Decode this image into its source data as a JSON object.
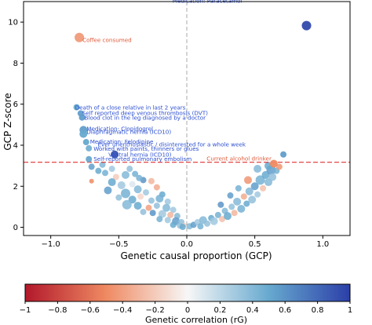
{
  "chart_data": {
    "type": "scatter",
    "title": "",
    "xlabel": "Genetic causal proportion (GCP)",
    "ylabel": "GCP Z-score",
    "xlim": [
      -1.2,
      1.2
    ],
    "ylim": [
      -0.4,
      11
    ],
    "x_ticks": [
      -1.0,
      -0.5,
      0.0,
      0.5,
      1.0
    ],
    "x_tick_labels": [
      "−1.0",
      "−0.5",
      "0.0",
      "0.5",
      "1.0"
    ],
    "y_ticks": [
      0,
      2,
      4,
      6,
      8,
      10
    ],
    "y_tick_labels": [
      "0",
      "2",
      "4",
      "6",
      "8",
      "10"
    ],
    "threshold_y": 3.17,
    "vertical_reference_x": 0,
    "grid": false,
    "colorbar": {
      "label": "Genetic correlation (rG)",
      "min": -1,
      "max": 1,
      "ticks": [
        -1,
        -0.8,
        -0.6,
        -0.4,
        -0.2,
        0,
        0.2,
        0.4,
        0.6,
        0.8,
        1
      ],
      "tick_labels": [
        "−1",
        "−0.8",
        "−0.6",
        "−0.4",
        "−0.2",
        "0",
        "0.2",
        "0.4",
        "0.6",
        "0.8",
        "1"
      ],
      "colors": [
        "#b2182b",
        "#ef8a62",
        "#f7f7f7",
        "#67a9cf",
        "#2c3fa8"
      ]
    },
    "annotations": [
      {
        "text": "Medication: Paracetamol",
        "x": 0.88,
        "y": 9.83,
        "rg": 0.95,
        "r": 6
      },
      {
        "text": "Coffee consumed",
        "x": -0.79,
        "y": 9.25,
        "rg": -0.42,
        "r": 6
      },
      {
        "text": "Death of a close relative in last 2 years",
        "x": -0.81,
        "y": 5.85,
        "rg": 0.5,
        "r": 4
      },
      {
        "text": "Self reported deep venous thrombosis (DVT)",
        "x": -0.78,
        "y": 5.55,
        "rg": 0.55,
        "r": 4
      },
      {
        "text": "Blood clot in the leg diagnosed by a doctor",
        "x": -0.77,
        "y": 5.35,
        "rg": 0.55,
        "r": 4
      },
      {
        "text": "Medication: Clopidogrel",
        "x": -0.76,
        "y": 4.75,
        "rg": 0.55,
        "r": 5
      },
      {
        "text": "Diaphragmatic hernia (ICD10)",
        "x": -0.76,
        "y": 4.55,
        "rg": 0.5,
        "r": 5
      },
      {
        "text": "Medication: Felodipine",
        "x": -0.74,
        "y": 4.15,
        "rg": 0.5,
        "r": 4
      },
      {
        "text": "Worked with paints, thinners or glues",
        "x": -0.72,
        "y": 3.85,
        "rg": 0.45,
        "r": 4
      },
      {
        "text": "Ventral hernia (ICD10)",
        "x": -0.53,
        "y": 3.55,
        "rg": 0.9,
        "r": 5
      },
      {
        "text": "Self-reported pulmonary embolism",
        "x": -0.72,
        "y": 3.32,
        "rg": 0.5,
        "r": 4
      },
      {
        "text": "Ever unenthusiastic / disinterested for a whole week",
        "x": 0.71,
        "y": 3.55,
        "rg": 0.55,
        "r": 4
      },
      {
        "text": "Current alcohol drinker",
        "x": 0.64,
        "y": 3.1,
        "rg": -0.5,
        "r": 5
      }
    ],
    "points": [
      {
        "x": -0.65,
        "y": 2.75,
        "rg": 0.5,
        "r": 4
      },
      {
        "x": -0.55,
        "y": 2.85,
        "rg": 0.3,
        "r": 4
      },
      {
        "x": -0.42,
        "y": 2.85,
        "rg": 0.35,
        "r": 4
      },
      {
        "x": -0.6,
        "y": 2.65,
        "rg": 0.45,
        "r": 4
      },
      {
        "x": -0.52,
        "y": 2.45,
        "rg": -0.2,
        "r": 4
      },
      {
        "x": -0.45,
        "y": 2.55,
        "rg": 0.4,
        "r": 5
      },
      {
        "x": -0.38,
        "y": 2.6,
        "rg": 0.45,
        "r": 4
      },
      {
        "x": -0.7,
        "y": 2.25,
        "rg": -0.5,
        "r": 3
      },
      {
        "x": -0.55,
        "y": 2.2,
        "rg": 0.5,
        "r": 5
      },
      {
        "x": -0.48,
        "y": 2.05,
        "rg": 0.3,
        "r": 5
      },
      {
        "x": -0.4,
        "y": 2.1,
        "rg": 0.1,
        "r": 4
      },
      {
        "x": -0.32,
        "y": 2.3,
        "rg": 0.6,
        "r": 4
      },
      {
        "x": -0.26,
        "y": 2.25,
        "rg": -0.3,
        "r": 4
      },
      {
        "x": -0.58,
        "y": 1.8,
        "rg": 0.55,
        "r": 5
      },
      {
        "x": -0.45,
        "y": 1.65,
        "rg": 0.45,
        "r": 6
      },
      {
        "x": -0.36,
        "y": 1.85,
        "rg": 0.4,
        "r": 5
      },
      {
        "x": -0.3,
        "y": 1.7,
        "rg": 0.3,
        "r": 4
      },
      {
        "x": -0.22,
        "y": 1.95,
        "rg": -0.35,
        "r": 4
      },
      {
        "x": -0.18,
        "y": 1.6,
        "rg": 0.5,
        "r": 4
      },
      {
        "x": -0.5,
        "y": 1.45,
        "rg": 0.35,
        "r": 4
      },
      {
        "x": -0.4,
        "y": 1.35,
        "rg": 0.5,
        "r": 5
      },
      {
        "x": -0.34,
        "y": 1.5,
        "rg": -0.15,
        "r": 4
      },
      {
        "x": -0.26,
        "y": 1.3,
        "rg": 0.35,
        "r": 4
      },
      {
        "x": -0.2,
        "y": 1.4,
        "rg": 0.45,
        "r": 5
      },
      {
        "x": -0.14,
        "y": 1.25,
        "rg": 0.3,
        "r": 4
      },
      {
        "x": -0.44,
        "y": 1.1,
        "rg": 0.4,
        "r": 6
      },
      {
        "x": -0.36,
        "y": 1.05,
        "rg": 0.5,
        "r": 5
      },
      {
        "x": -0.28,
        "y": 0.95,
        "rg": -0.4,
        "r": 4
      },
      {
        "x": -0.22,
        "y": 1.05,
        "rg": 0.35,
        "r": 4
      },
      {
        "x": -0.15,
        "y": 0.95,
        "rg": 0.4,
        "r": 5
      },
      {
        "x": -0.1,
        "y": 0.85,
        "rg": 0.3,
        "r": 4
      },
      {
        "x": -0.32,
        "y": 0.75,
        "rg": 0.35,
        "r": 4
      },
      {
        "x": -0.25,
        "y": 0.7,
        "rg": 0.6,
        "r": 4
      },
      {
        "x": -0.18,
        "y": 0.65,
        "rg": 0.3,
        "r": 5
      },
      {
        "x": -0.12,
        "y": 0.6,
        "rg": -0.3,
        "r": 4
      },
      {
        "x": -0.07,
        "y": 0.55,
        "rg": 0.4,
        "r": 4
      },
      {
        "x": -0.2,
        "y": 0.4,
        "rg": 0.45,
        "r": 4
      },
      {
        "x": -0.14,
        "y": 0.35,
        "rg": 0.3,
        "r": 4
      },
      {
        "x": -0.08,
        "y": 0.3,
        "rg": 0.55,
        "r": 5
      },
      {
        "x": -0.04,
        "y": 0.25,
        "rg": 0.35,
        "r": 4
      },
      {
        "x": -0.1,
        "y": 0.12,
        "rg": 0.5,
        "r": 4
      },
      {
        "x": -0.05,
        "y": 0.08,
        "rg": 0.35,
        "r": 4
      },
      {
        "x": -0.02,
        "y": 0.1,
        "rg": -0.2,
        "r": 3
      },
      {
        "x": -0.03,
        "y": 0.02,
        "rg": 0.5,
        "r": 4
      },
      {
        "x": 0.02,
        "y": 0.05,
        "rg": 0.4,
        "r": 4
      },
      {
        "x": 0.05,
        "y": 0.12,
        "rg": 0.55,
        "r": 4
      },
      {
        "x": 0.08,
        "y": 0.25,
        "rg": 0.3,
        "r": 4
      },
      {
        "x": 0.1,
        "y": 0.05,
        "rg": 0.45,
        "r": 4
      },
      {
        "x": 0.12,
        "y": 0.35,
        "rg": 0.4,
        "r": 5
      },
      {
        "x": 0.15,
        "y": 0.18,
        "rg": 0.35,
        "r": 4
      },
      {
        "x": 0.18,
        "y": 0.45,
        "rg": 0.5,
        "r": 4
      },
      {
        "x": 0.2,
        "y": 0.3,
        "rg": 0.3,
        "r": 5
      },
      {
        "x": 0.23,
        "y": 0.6,
        "rg": 0.45,
        "r": 4
      },
      {
        "x": 0.26,
        "y": 0.4,
        "rg": -0.25,
        "r": 4
      },
      {
        "x": 0.28,
        "y": 0.8,
        "rg": 0.4,
        "r": 4
      },
      {
        "x": 0.3,
        "y": 0.55,
        "rg": 0.5,
        "r": 5
      },
      {
        "x": 0.33,
        "y": 1.0,
        "rg": 0.35,
        "r": 4
      },
      {
        "x": 0.35,
        "y": 0.7,
        "rg": -0.3,
        "r": 4
      },
      {
        "x": 0.37,
        "y": 1.25,
        "rg": 0.4,
        "r": 5
      },
      {
        "x": 0.4,
        "y": 0.9,
        "rg": 0.45,
        "r": 5
      },
      {
        "x": 0.42,
        "y": 1.5,
        "rg": -0.35,
        "r": 4
      },
      {
        "x": 0.44,
        "y": 1.15,
        "rg": 0.5,
        "r": 4
      },
      {
        "x": 0.46,
        "y": 1.75,
        "rg": 0.4,
        "r": 5
      },
      {
        "x": 0.48,
        "y": 1.35,
        "rg": 0.35,
        "r": 5
      },
      {
        "x": 0.5,
        "y": 2.0,
        "rg": 0.55,
        "r": 5
      },
      {
        "x": 0.52,
        "y": 1.6,
        "rg": 0.3,
        "r": 4
      },
      {
        "x": 0.54,
        "y": 2.3,
        "rg": 0.45,
        "r": 6
      },
      {
        "x": 0.56,
        "y": 1.9,
        "rg": -0.25,
        "r": 4
      },
      {
        "x": 0.58,
        "y": 2.55,
        "rg": 0.5,
        "r": 5
      },
      {
        "x": 0.6,
        "y": 2.2,
        "rg": 0.4,
        "r": 5
      },
      {
        "x": 0.62,
        "y": 2.8,
        "rg": 0.55,
        "r": 6
      },
      {
        "x": 0.63,
        "y": 2.45,
        "rg": 0.35,
        "r": 5
      },
      {
        "x": 0.6,
        "y": 3.0,
        "rg": 0.5,
        "r": 5
      },
      {
        "x": 0.66,
        "y": 2.75,
        "rg": 0.45,
        "r": 4
      },
      {
        "x": 0.68,
        "y": 2.95,
        "rg": -0.45,
        "r": 4
      },
      {
        "x": 0.45,
        "y": 2.3,
        "rg": -0.45,
        "r": 5
      },
      {
        "x": 0.52,
        "y": 2.85,
        "rg": 0.4,
        "r": 5
      },
      {
        "x": 0.38,
        "y": 1.9,
        "rg": 0.45,
        "r": 4
      },
      {
        "x": -0.62,
        "y": 3.05,
        "rg": 0.4,
        "r": 4
      },
      {
        "x": -0.7,
        "y": 2.95,
        "rg": 0.55,
        "r": 4
      },
      {
        "x": -0.35,
        "y": 2.4,
        "rg": 0.45,
        "r": 4
      },
      {
        "x": 0.25,
        "y": 1.1,
        "rg": 0.6,
        "r": 4
      },
      {
        "x": 0.32,
        "y": 1.55,
        "rg": 0.55,
        "r": 4
      }
    ]
  }
}
